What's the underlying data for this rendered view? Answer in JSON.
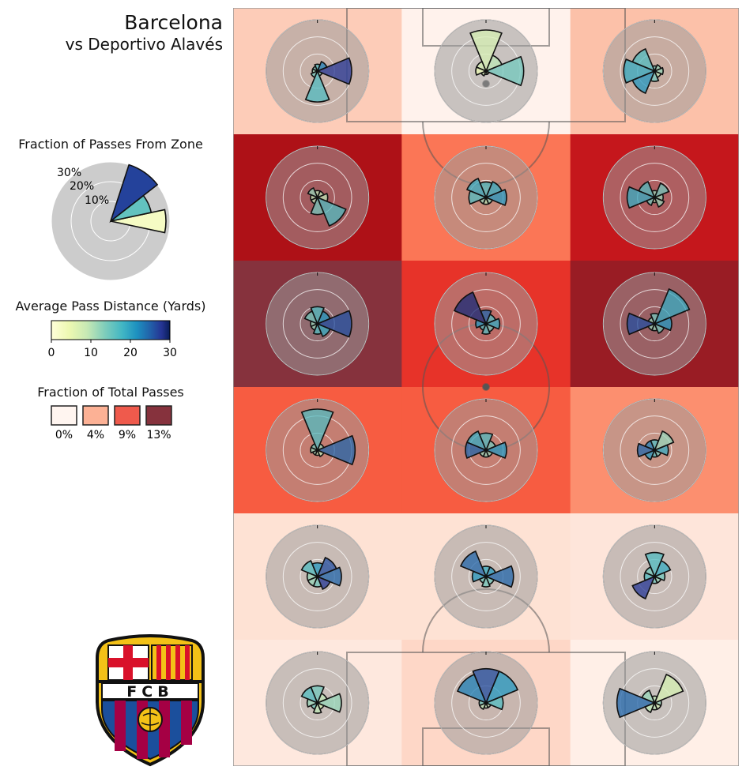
{
  "header": {
    "team": "Barcelona",
    "opponent": "vs Deportivo Alavés"
  },
  "legend": {
    "zone_title": "Fraction of Passes From Zone",
    "zone_ticks": [
      "30%",
      "20%",
      "10%"
    ],
    "distance_title": "Average Pass Distance (Yards)",
    "distance_ticks": [
      "0",
      "10",
      "20",
      "30"
    ],
    "share_title": "Fraction of Total Passes",
    "share_swatches": [
      {
        "label": "0%",
        "color": "#fff5f0"
      },
      {
        "label": "4%",
        "color": "#fcb195"
      },
      {
        "label": "9%",
        "color": "#ef5a4c"
      },
      {
        "label": "13%",
        "color": "#86323d"
      }
    ]
  },
  "logo": {
    "text": "FCB",
    "colors": {
      "blue": "#1b4f9c",
      "red": "#a50044",
      "gold": "#f3c117",
      "cross": "#d9112a"
    }
  },
  "chart_data": {
    "type": "heatmap",
    "description_of_axes": "pitch divided into 6 rows x 3 columns; each zone shows a rose of pass direction (8 directions starting East, counter-clockwise) with fraction and average distance",
    "distance_range": [
      0,
      30
    ],
    "share_range": [
      0,
      13
    ],
    "zone_fraction_max": 30,
    "zones": [
      {
        "row": 0,
        "col": 0,
        "share": 2.5,
        "fractions": [
          20,
          6,
          4,
          3,
          3,
          4,
          18,
          3
        ],
        "distances": [
          26,
          20,
          14,
          12,
          10,
          12,
          14,
          10
        ]
      },
      {
        "row": 0,
        "col": 1,
        "share": 0.2,
        "fractions": [
          22,
          10,
          24,
          6,
          6,
          3,
          2,
          2
        ],
        "distances": [
          12,
          8,
          6,
          6,
          4,
          6,
          6,
          4
        ]
      },
      {
        "row": 0,
        "col": 2,
        "share": 3,
        "fractions": [
          5,
          4,
          3,
          14,
          18,
          14,
          6,
          4
        ],
        "distances": [
          10,
          10,
          12,
          14,
          16,
          18,
          12,
          8
        ]
      },
      {
        "row": 1,
        "col": 0,
        "share": 11,
        "fractions": [
          6,
          4,
          4,
          6,
          4,
          4,
          10,
          18
        ],
        "distances": [
          8,
          8,
          8,
          10,
          8,
          8,
          12,
          14
        ]
      },
      {
        "row": 1,
        "col": 1,
        "share": 6,
        "fractions": [
          12,
          10,
          9,
          12,
          10,
          4,
          4,
          4
        ],
        "distances": [
          18,
          16,
          14,
          16,
          14,
          10,
          8,
          10
        ]
      },
      {
        "row": 1,
        "col": 2,
        "share": 10,
        "fractions": [
          5,
          9,
          4,
          10,
          16,
          5,
          3,
          6
        ],
        "distances": [
          10,
          12,
          10,
          14,
          16,
          12,
          8,
          10
        ]
      },
      {
        "row": 2,
        "col": 0,
        "share": 13,
        "fractions": [
          20,
          8,
          10,
          8,
          4,
          4,
          6,
          8
        ],
        "distances": [
          24,
          18,
          14,
          12,
          10,
          10,
          14,
          16
        ]
      },
      {
        "row": 2,
        "col": 1,
        "share": 8.5,
        "fractions": [
          8,
          6,
          8,
          20,
          6,
          4,
          6,
          5
        ],
        "distances": [
          16,
          14,
          22,
          28,
          18,
          14,
          14,
          12
        ]
      },
      {
        "row": 2,
        "col": 2,
        "share": 12,
        "fractions": [
          10,
          22,
          6,
          4,
          16,
          4,
          4,
          6
        ],
        "distances": [
          18,
          16,
          12,
          10,
          24,
          10,
          10,
          12
        ]
      },
      {
        "row": 3,
        "col": 0,
        "share": 7,
        "fractions": [
          22,
          4,
          24,
          4,
          4,
          3,
          3,
          4
        ],
        "distances": [
          22,
          10,
          14,
          12,
          10,
          10,
          8,
          8
        ]
      },
      {
        "row": 3,
        "col": 1,
        "share": 7,
        "fractions": [
          12,
          6,
          10,
          12,
          12,
          4,
          4,
          4
        ],
        "distances": [
          18,
          12,
          14,
          16,
          22,
          10,
          10,
          10
        ]
      },
      {
        "row": 3,
        "col": 2,
        "share": 5,
        "fractions": [
          8,
          12,
          6,
          6,
          10,
          6,
          4,
          4
        ],
        "distances": [
          16,
          10,
          14,
          20,
          22,
          18,
          14,
          12
        ]
      },
      {
        "row": 4,
        "col": 0,
        "share": 1.5,
        "fractions": [
          14,
          12,
          8,
          10,
          6,
          6,
          6,
          8
        ],
        "distances": [
          22,
          24,
          18,
          14,
          10,
          10,
          12,
          26
        ]
      },
      {
        "row": 4,
        "col": 1,
        "share": 1.5,
        "fractions": [
          16,
          6,
          6,
          16,
          8,
          4,
          6,
          5
        ],
        "distances": [
          22,
          18,
          16,
          22,
          18,
          12,
          12,
          12
        ]
      },
      {
        "row": 4,
        "col": 2,
        "share": 1.2,
        "fractions": [
          6,
          10,
          14,
          6,
          6,
          14,
          4,
          4
        ],
        "distances": [
          12,
          16,
          14,
          12,
          14,
          26,
          12,
          10
        ]
      },
      {
        "row": 5,
        "col": 0,
        "share": 1,
        "fractions": [
          14,
          6,
          10,
          10,
          6,
          4,
          6,
          4
        ],
        "distances": [
          10,
          8,
          12,
          14,
          10,
          12,
          8,
          6
        ]
      },
      {
        "row": 5,
        "col": 1,
        "share": 2,
        "fractions": [
          10,
          20,
          20,
          18,
          4,
          4,
          3,
          3
        ],
        "distances": [
          14,
          18,
          24,
          20,
          12,
          8,
          8,
          8
        ]
      },
      {
        "row": 5,
        "col": 2,
        "share": 0.5,
        "fractions": [
          4,
          18,
          4,
          8,
          22,
          6,
          4,
          4
        ],
        "distances": [
          10,
          6,
          8,
          10,
          22,
          8,
          8,
          6
        ]
      }
    ]
  }
}
